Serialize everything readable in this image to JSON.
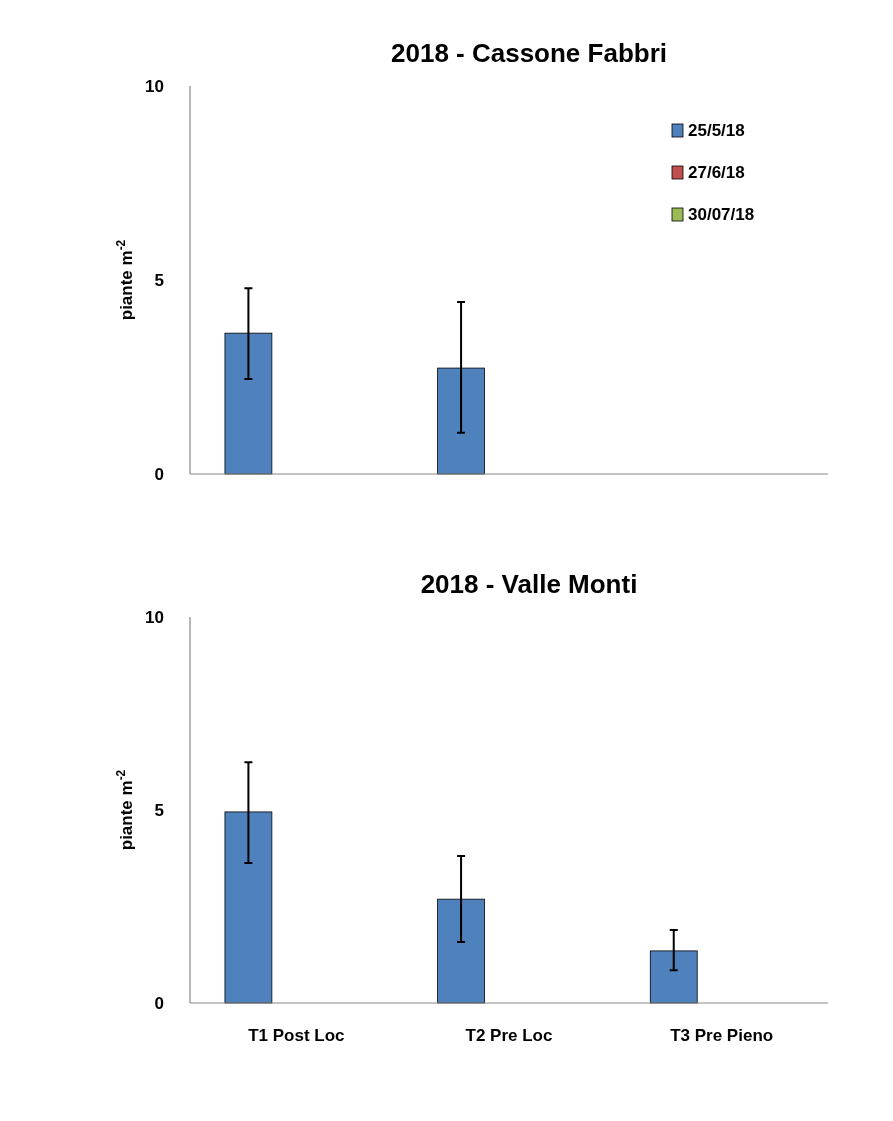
{
  "chart_data": [
    {
      "type": "bar",
      "title": "2018 - Cassone Fabbri",
      "ylabel": "piante m$^{-2}$",
      "categories": [
        null,
        null,
        null
      ],
      "ylim": [
        0,
        10
      ],
      "yticks": [
        0,
        5,
        10
      ],
      "tick_labels": "y",
      "legend": "top right",
      "series": [
        {
          "name": "25/5/18",
          "color": "#4f81bd",
          "values": [
            3.63,
            2.73,
            null
          ],
          "errors": [
            [
              2.45,
              4.79
            ],
            [
              1.06,
              4.43
            ],
            null
          ]
        },
        {
          "name": "27/6/18",
          "color": "#c0504d",
          "values": [
            null,
            null,
            null
          ]
        },
        {
          "name": "30/07/18",
          "color": "#9bbb59",
          "values": [
            null,
            null,
            null
          ]
        }
      ]
    },
    {
      "type": "bar",
      "title": "2018 - Valle Monti",
      "ylabel": "piante m$^{-2}$",
      "categories": [
        "T1 Post Loc",
        "T2 Pre Loc",
        "T3 Pre Pieno"
      ],
      "ylim": [
        0,
        10
      ],
      "yticks": [
        0,
        5,
        10
      ],
      "series": [
        {
          "color": "#4f81bd",
          "values": [
            4.95,
            2.69,
            1.35
          ],
          "errors": [
            [
              3.63,
              6.24
            ],
            [
              1.58,
              3.81
            ],
            [
              0.85,
              1.89
            ]
          ]
        },
        {
          "values": [
            null,
            null,
            null
          ]
        },
        {
          "values": [
            null,
            null,
            null
          ]
        }
      ]
    }
  ]
}
